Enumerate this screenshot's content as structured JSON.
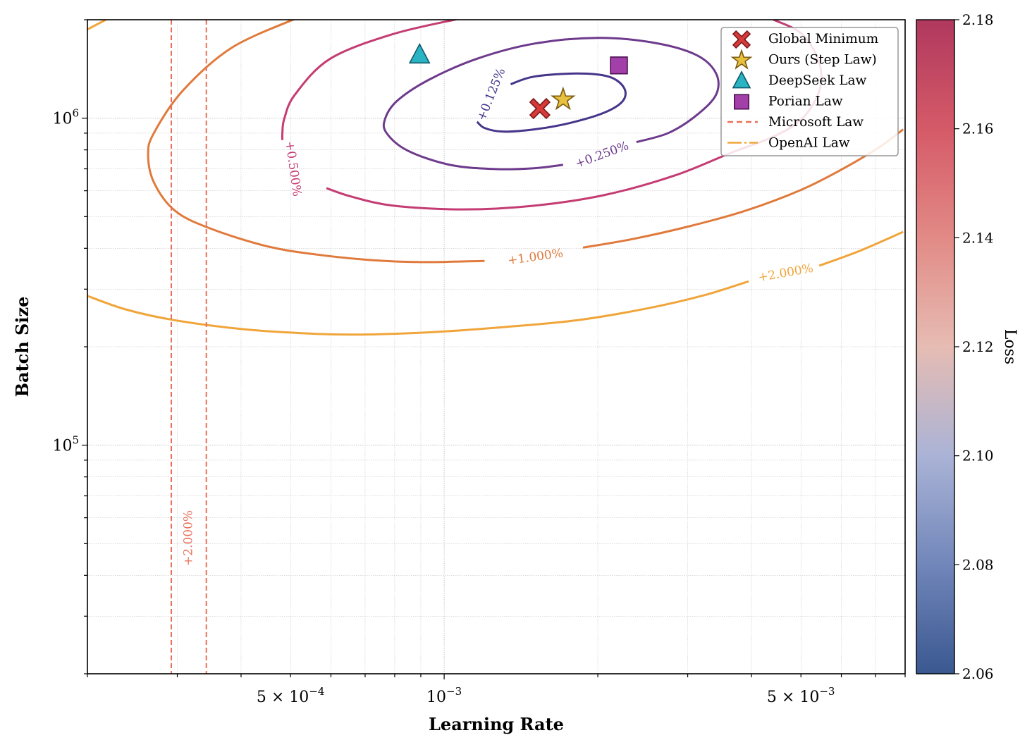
{
  "chart_data": {
    "type": "line",
    "subtype": "contour",
    "title": "",
    "xlabel": "Learning Rate",
    "ylabel": "Batch Size",
    "xscale": "log",
    "yscale": "log",
    "xlim": [
      0.0002,
      0.008
    ],
    "ylim": [
      20000,
      2000000
    ],
    "grid": true,
    "legend_placement": "top-right",
    "x_ticks": [
      {
        "value": 0.0005,
        "base": "5 × 10",
        "exp": "−4"
      },
      {
        "value": 0.001,
        "base": "10",
        "exp": "−3"
      },
      {
        "value": 0.005,
        "base": "5 × 10",
        "exp": "−3"
      }
    ],
    "y_ticks": [
      {
        "value": 100000,
        "base": "10",
        "exp": "5"
      },
      {
        "value": 1000000,
        "base": "10",
        "exp": "6"
      }
    ],
    "colorbar": {
      "label": "Loss",
      "range": [
        2.06,
        2.18
      ],
      "ticks": [
        "2.06",
        "2.08",
        "2.10",
        "2.12",
        "2.14",
        "2.16",
        "2.18"
      ],
      "colors": [
        "#3a5890",
        "#7186ba",
        "#aab3d6",
        "#e6bcb3",
        "#e28a86",
        "#d55a68",
        "#b0385e"
      ]
    },
    "contours": [
      {
        "label": "+0.125%",
        "color": "#46358a",
        "segments": [
          [
            [
              0.00135,
              1270000
            ],
            [
              0.0015,
              1340000
            ],
            [
              0.00182,
              1370000
            ],
            [
              0.0021,
              1340000
            ],
            [
              0.00225,
              1240000
            ],
            [
              0.00224,
              1130000
            ],
            [
              0.00206,
              1040000
            ],
            [
              0.00176,
              966000
            ],
            [
              0.0015,
              924000
            ],
            [
              0.0013,
              910000
            ],
            [
              0.0012,
              933000
            ],
            [
              0.00116,
              975000
            ]
          ]
        ]
      },
      {
        "label": "+0.250%",
        "color": "#6e3a8c",
        "segments": [
          [
            [
              0.00171,
              720000
            ],
            [
              0.0015,
              703000
            ],
            [
              0.00126,
              699000
            ],
            [
              0.001026,
              720000
            ],
            [
              0.000848,
              796000
            ],
            [
              0.000771,
              901000
            ],
            [
              0.000766,
              995000
            ],
            [
              0.000809,
              1130000
            ],
            [
              0.000933,
              1310000
            ],
            [
              0.00116,
              1520000
            ],
            [
              0.0015,
              1690000
            ],
            [
              0.002,
              1760000
            ],
            [
              0.00258,
              1700000
            ],
            [
              0.00312,
              1560000
            ],
            [
              0.00341,
              1370000
            ],
            [
              0.00341,
              1180000
            ],
            [
              0.00312,
              1020000
            ],
            [
              0.00275,
              901000
            ],
            [
              0.00238,
              845000
            ]
          ]
        ]
      },
      {
        "label": "+0.500%",
        "color": "#c43c72",
        "segments": [
          [
            [
              0.000482,
              857000
            ],
            [
              0.000482,
              901000
            ],
            [
              0.000486,
              995000
            ],
            [
              0.00051,
              1180000
            ],
            [
              0.000598,
              1520000
            ],
            [
              0.000796,
              1810000
            ],
            [
              0.00108,
              2020000
            ]
          ],
          [
            [
              0.00442,
              2000000
            ],
            [
              0.00502,
              1810000
            ],
            [
              0.00543,
              1480000
            ],
            [
              0.00543,
              1210000
            ],
            [
              0.00502,
              995000
            ],
            [
              0.00442,
              879000
            ],
            [
              0.00365,
              784000
            ],
            [
              0.00283,
              668000
            ],
            [
              0.00206,
              582000
            ],
            [
              0.0015,
              540000
            ],
            [
              0.00109,
              526000
            ],
            [
              0.000796,
              540000
            ],
            [
              0.000657,
              576000
            ],
            [
              0.000588,
              611000
            ]
          ]
        ]
      },
      {
        "label": "+1.000%",
        "color": "#e07a3c",
        "segments": [
          [
            [
              0.000513,
              2020000
            ],
            [
              0.000383,
              1640000
            ],
            [
              0.000307,
              1210000
            ],
            [
              0.00027,
              901000
            ],
            [
              0.000263,
              776000
            ],
            [
              0.00027,
              636000
            ],
            [
              0.000297,
              521000
            ],
            [
              0.000348,
              460000
            ],
            [
              0.000449,
              406000
            ],
            [
              0.000561,
              383000
            ],
            [
              0.000723,
              368000
            ],
            [
              0.000904,
              363000
            ],
            [
              0.0012,
              366000
            ]
          ],
          [
            [
              0.00187,
              402000
            ],
            [
              0.00234,
              427000
            ],
            [
              0.00302,
              467000
            ],
            [
              0.00389,
              521000
            ],
            [
              0.00502,
              605000
            ],
            [
              0.00607,
              703000
            ],
            [
              0.00712,
              815000
            ],
            [
              0.00793,
              924000
            ]
          ]
        ]
      },
      {
        "label": "+2.000%",
        "color": "#f0a53a",
        "segments": [
          [
            [
              0.000199,
              1860000
            ],
            [
              0.00022,
              2020000
            ]
          ],
          [
            [
              0.000199,
              287000
            ],
            [
              0.000238,
              260000
            ],
            [
              0.000297,
              241000
            ],
            [
              0.000408,
              226000
            ],
            [
              0.000561,
              219000
            ],
            [
              0.000701,
              218000
            ],
            [
              0.000962,
              222000
            ],
            [
              0.00132,
              230000
            ],
            [
              0.00182,
              241000
            ],
            [
              0.0025,
              262000
            ],
            [
              0.00322,
              287000
            ],
            [
              0.00395,
              317000
            ]
          ],
          [
            [
              0.00543,
              354000
            ],
            [
              0.00647,
              391000
            ],
            [
              0.00793,
              449000
            ]
          ]
        ]
      }
    ],
    "vertical_lines": {
      "name": "Microsoft Law",
      "label": "+2.000%",
      "color": "#e8705a",
      "x": [
        0.000292,
        0.000342
      ]
    },
    "markers": [
      {
        "name": "Global Minimum",
        "symbol": "x",
        "x": 0.00154,
        "y": 1070000,
        "fill": "#d63a3a",
        "stroke": "#7a1a1a"
      },
      {
        "name": "Ours (Step Law)",
        "symbol": "star",
        "x": 0.00171,
        "y": 1140000,
        "fill": "#e8c040",
        "stroke": "#7a5a10"
      },
      {
        "name": "DeepSeek Law",
        "symbol": "triangle",
        "x": 0.000895,
        "y": 1560000,
        "fill": "#2ab3c2",
        "stroke": "#105868"
      },
      {
        "name": "Porian Law",
        "symbol": "square",
        "x": 0.0022,
        "y": 1450000,
        "fill": "#a23fa8",
        "stroke": "#4a1050"
      }
    ],
    "legend": [
      {
        "label": "Global Minimum",
        "kind": "x"
      },
      {
        "label": "Ours (Step Law)",
        "kind": "star"
      },
      {
        "label": "DeepSeek Law",
        "kind": "triangle"
      },
      {
        "label": "Porian Law",
        "kind": "square"
      },
      {
        "label": "Microsoft Law",
        "kind": "dash",
        "color": "#e8705a"
      },
      {
        "label": "OpenAI Law",
        "kind": "dashdot",
        "color": "#f0a53a"
      }
    ]
  }
}
